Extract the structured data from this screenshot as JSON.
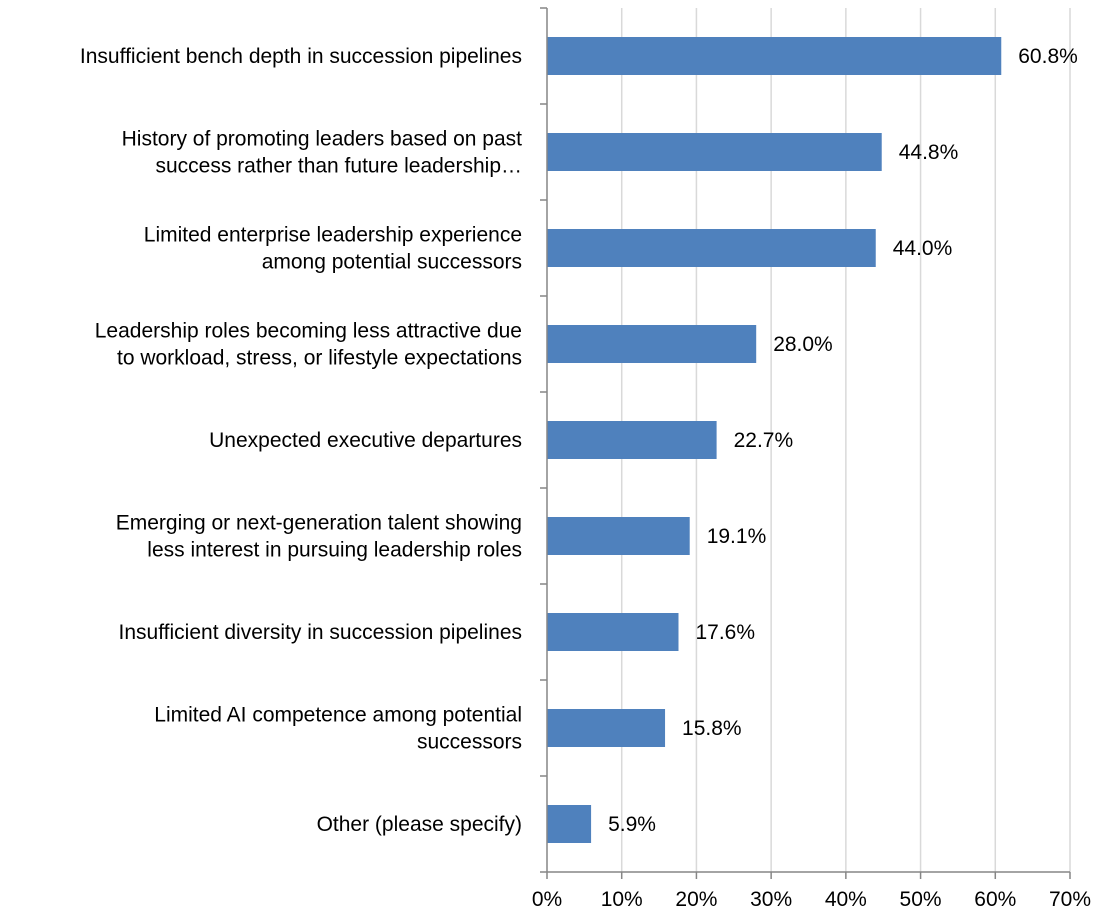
{
  "chart_data": {
    "type": "bar",
    "orientation": "horizontal",
    "categories": [
      [
        "Insufficient bench depth in succession pipelines"
      ],
      [
        "History of promoting leaders based on past",
        "success rather than future leadership…"
      ],
      [
        "Limited enterprise leadership experience",
        "among potential successors"
      ],
      [
        "Leadership roles becoming less attractive due",
        "to workload, stress, or lifestyle expectations"
      ],
      [
        "Unexpected executive departures"
      ],
      [
        "Emerging or next-generation talent showing",
        "less interest in pursuing leadership roles"
      ],
      [
        "Insufficient diversity in succession pipelines"
      ],
      [
        "Limited AI competence among potential",
        "successors"
      ],
      [
        "Other (please specify)"
      ]
    ],
    "values": [
      60.8,
      44.8,
      44.0,
      28.0,
      22.7,
      19.1,
      17.6,
      15.8,
      5.9
    ],
    "value_labels": [
      "60.8%",
      "44.8%",
      "44.0%",
      "28.0%",
      "22.7%",
      "19.1%",
      "17.6%",
      "15.8%",
      "5.9%"
    ],
    "xlim": [
      0,
      70
    ],
    "x_ticks": [
      0,
      10,
      20,
      30,
      40,
      50,
      60,
      70
    ],
    "x_tick_labels": [
      "0%",
      "10%",
      "20%",
      "30%",
      "40%",
      "50%",
      "60%",
      "70%"
    ],
    "title": "",
    "xlabel": "",
    "ylabel": "",
    "grid": true,
    "legend": "none",
    "bar_color": "#4f81bd"
  }
}
